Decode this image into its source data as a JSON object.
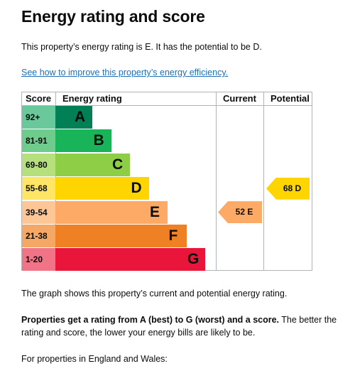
{
  "title": "Energy rating and score",
  "intro": "This property’s energy rating is E. It has the potential to be D.",
  "improve_link": "See how to improve this property’s energy efficiency.",
  "chart_data": {
    "type": "table",
    "headers": {
      "score": "Score",
      "rating": "Energy rating",
      "current": "Current",
      "potential": "Potential"
    },
    "bands": [
      {
        "letter": "A",
        "range": "92+",
        "color": "#008054",
        "score_bg": "#69c99b"
      },
      {
        "letter": "B",
        "range": "81-91",
        "color": "#19b459",
        "score_bg": "#6fcc8c"
      },
      {
        "letter": "C",
        "range": "69-80",
        "color": "#8dce46",
        "score_bg": "#b5e07d"
      },
      {
        "letter": "D",
        "range": "55-68",
        "color": "#ffd500",
        "score_bg": "#ffe566"
      },
      {
        "letter": "E",
        "range": "39-54",
        "color": "#fcaa65",
        "score_bg": "#fdc697"
      },
      {
        "letter": "F",
        "range": "21-38",
        "color": "#ef8023",
        "score_bg": "#f5a865"
      },
      {
        "letter": "G",
        "range": "1-20",
        "color": "#e9153b",
        "score_bg": "#f07386"
      }
    ],
    "current": {
      "score": 52,
      "band": "E",
      "label": "52 E",
      "color": "#fcaa65"
    },
    "potential": {
      "score": 68,
      "band": "D",
      "label": "68 D",
      "color": "#ffd500"
    }
  },
  "graph_description": "The graph shows this property’s current and potential energy rating.",
  "rating_explanation": {
    "bold": "Properties get a rating from A (best) to G (worst) and a score.",
    "rest": " The better the rating and score, the lower your energy bills are likely to be."
  },
  "regions_text": "For properties in England and Wales:"
}
